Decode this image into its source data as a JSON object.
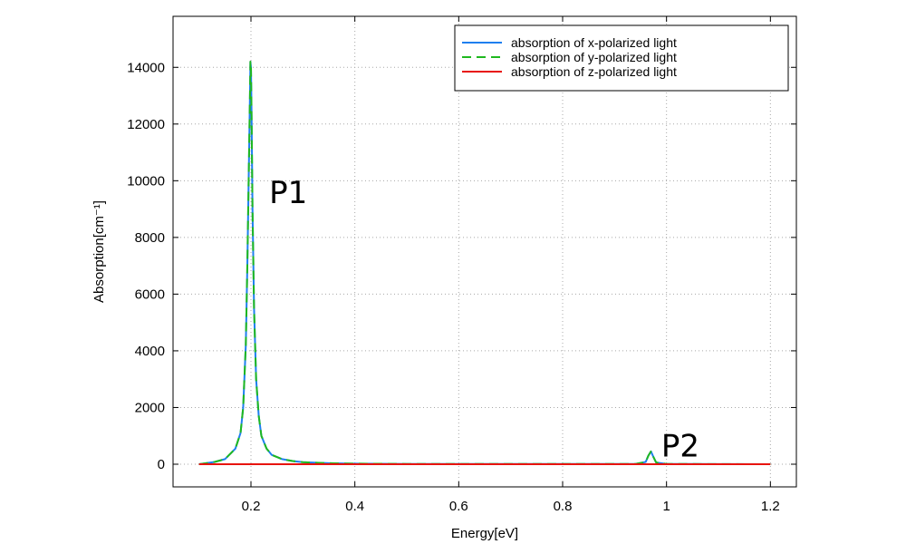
{
  "chart_data": {
    "type": "line",
    "title": "",
    "xlabel": "Energy[eV]",
    "ylabel": "Absorption[cm⁻¹]",
    "xlim": [
      0.05,
      1.25
    ],
    "ylim": [
      -800,
      15800
    ],
    "xticks": [
      0.2,
      0.4,
      0.6,
      0.8,
      1,
      1.2
    ],
    "xtick_labels": [
      "0.2",
      "0.4",
      "0.6",
      "0.8",
      "1",
      "1.2"
    ],
    "yticks": [
      0,
      2000,
      4000,
      6000,
      8000,
      10000,
      12000,
      14000
    ],
    "ytick_labels": [
      "0",
      "2000",
      "4000",
      "6000",
      "8000",
      "10000",
      "12000",
      "14000"
    ],
    "grid": true,
    "legend_position": "top-right",
    "series": [
      {
        "name": "absorption of x-polarized light",
        "color": "#1f7fef",
        "style": "solid",
        "x": [
          0.1,
          0.13,
          0.15,
          0.17,
          0.18,
          0.185,
          0.19,
          0.193,
          0.196,
          0.198,
          0.199,
          0.2,
          0.201,
          0.203,
          0.206,
          0.21,
          0.215,
          0.22,
          0.23,
          0.24,
          0.26,
          0.28,
          0.3,
          0.35,
          0.4,
          0.5,
          0.6,
          0.7,
          0.8,
          0.9,
          0.94,
          0.96,
          0.965,
          0.97,
          0.975,
          0.98,
          1.0,
          1.1,
          1.2
        ],
        "y": [
          0,
          80,
          180,
          550,
          1100,
          2000,
          4200,
          7000,
          10500,
          13000,
          14200,
          14000,
          12500,
          9000,
          5500,
          3000,
          1700,
          1000,
          550,
          330,
          180,
          110,
          70,
          35,
          20,
          10,
          8,
          6,
          5,
          5,
          10,
          80,
          300,
          450,
          250,
          60,
          10,
          3,
          0
        ]
      },
      {
        "name": "absorption of y-polarized light",
        "color": "#1fb81f",
        "style": "dashed",
        "x": [
          0.1,
          0.13,
          0.15,
          0.17,
          0.18,
          0.185,
          0.19,
          0.193,
          0.196,
          0.198,
          0.199,
          0.2,
          0.201,
          0.203,
          0.206,
          0.21,
          0.215,
          0.22,
          0.23,
          0.24,
          0.26,
          0.28,
          0.3,
          0.35,
          0.4,
          0.5,
          0.6,
          0.7,
          0.8,
          0.9,
          0.94,
          0.96,
          0.965,
          0.97,
          0.975,
          0.98,
          1.0,
          1.1,
          1.2
        ],
        "y": [
          0,
          80,
          180,
          550,
          1100,
          2000,
          4200,
          7000,
          10500,
          13000,
          14200,
          14000,
          12500,
          9000,
          5500,
          3000,
          1700,
          1000,
          550,
          330,
          180,
          110,
          70,
          35,
          20,
          10,
          8,
          6,
          5,
          5,
          10,
          80,
          300,
          450,
          250,
          60,
          10,
          3,
          0
        ]
      },
      {
        "name": "absorption of z-polarized light",
        "color": "#e8140f",
        "style": "solid",
        "x": [
          0.1,
          0.3,
          0.5,
          0.7,
          0.9,
          1.1,
          1.2
        ],
        "y": [
          0,
          0,
          0,
          0,
          0,
          0,
          0
        ]
      }
    ],
    "annotations": [
      {
        "text": "P1",
        "x": 0.235,
        "y": 9600
      },
      {
        "text": "P2",
        "x": 0.99,
        "y": 650
      }
    ]
  }
}
